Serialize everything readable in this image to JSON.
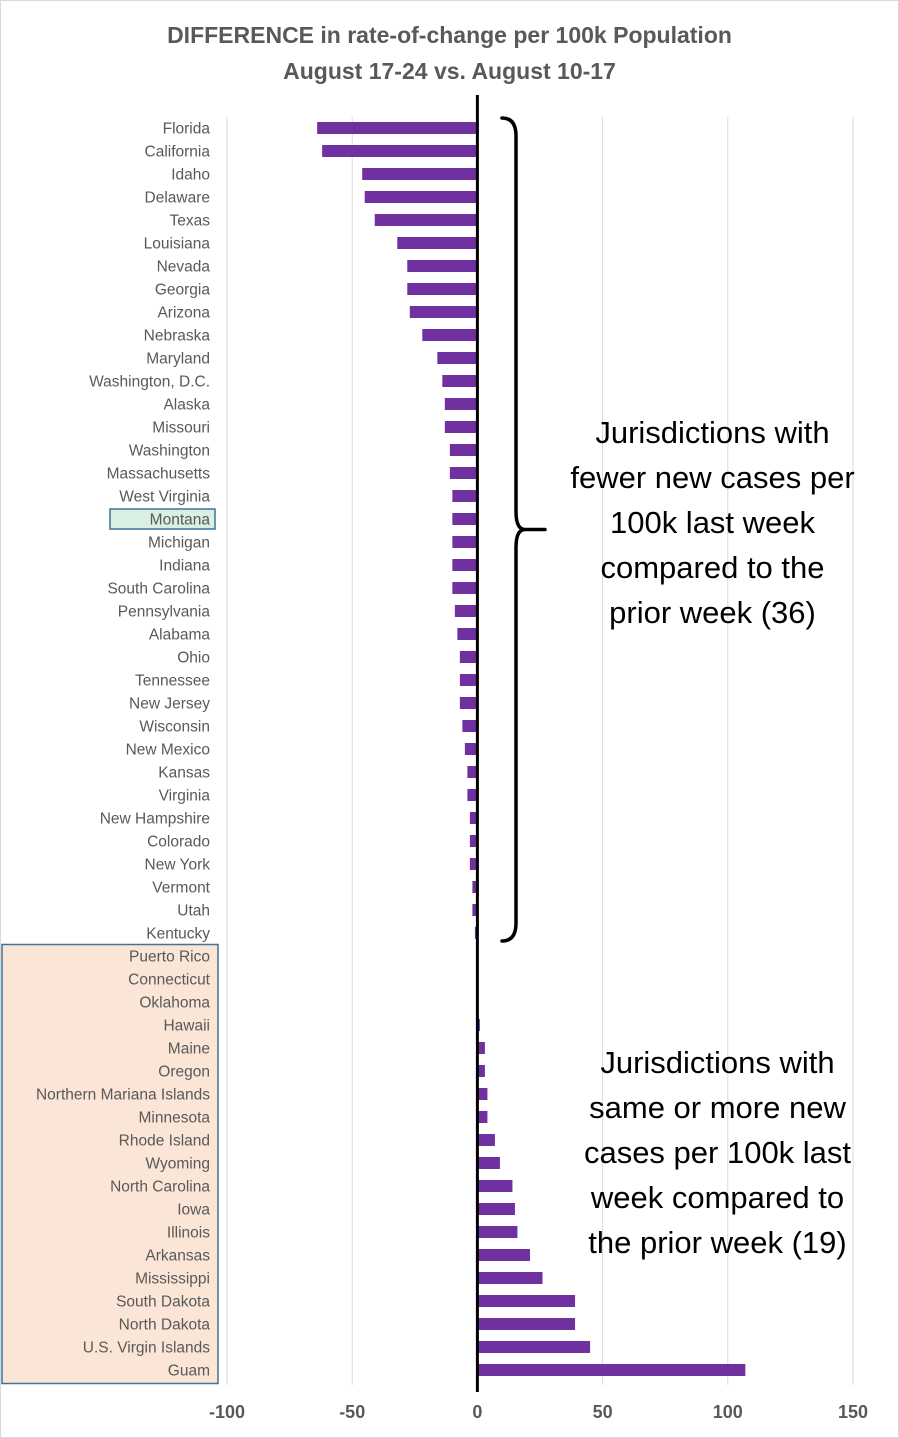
{
  "chart_data": {
    "type": "bar",
    "orientation": "horizontal",
    "title": "DIFFERENCE in rate-of-change per 100k Population",
    "subtitle": "August 17-24 vs. August 10-17",
    "xlim": [
      -100,
      150
    ],
    "xticks": [
      -100,
      -50,
      0,
      50,
      100,
      150
    ],
    "grid": true,
    "bar_color": "#7030a0",
    "categories": [
      "Florida",
      "California",
      "Idaho",
      "Delaware",
      "Texas",
      "Louisiana",
      "Nevada",
      "Georgia",
      "Arizona",
      "Nebraska",
      "Maryland",
      "Washington, D.C.",
      "Alaska",
      "Missouri",
      "Washington",
      "Massachusetts",
      "West Virginia",
      "Montana",
      "Michigan",
      "Indiana",
      "South Carolina",
      "Pennsylvania",
      "Alabama",
      "Ohio",
      "Tennessee",
      "New Jersey",
      "Wisconsin",
      "New Mexico",
      "Kansas",
      "Virginia",
      "New Hampshire",
      "Colorado",
      "New York",
      "Vermont",
      "Utah",
      "Kentucky",
      "Puerto Rico",
      "Connecticut",
      "Oklahoma",
      "Hawaii",
      "Maine",
      "Oregon",
      "Northern Mariana Islands",
      "Minnesota",
      "Rhode Island",
      "Wyoming",
      "North Carolina",
      "Iowa",
      "Illinois",
      "Arkansas",
      "Mississippi",
      "South Dakota",
      "North Dakota",
      "U.S. Virgin Islands",
      "Guam"
    ],
    "values": [
      -64,
      -62,
      -46,
      -45,
      -41,
      -32,
      -28,
      -28,
      -27,
      -22,
      -16,
      -14,
      -13,
      -13,
      -11,
      -11,
      -10,
      -10,
      -10,
      -10,
      -10,
      -9,
      -8,
      -7,
      -7,
      -7,
      -6,
      -5,
      -4,
      -4,
      -3,
      -3,
      -3,
      -2,
      -2,
      -1,
      0,
      0,
      0,
      1,
      3,
      3,
      4,
      4,
      7,
      9,
      14,
      15,
      16,
      21,
      26,
      39,
      39,
      45,
      107
    ],
    "highlight_label": "Montana",
    "highlight_color": "#d9efe3",
    "highlight_border": "#41719c",
    "group_box_start": "Puerto Rico",
    "group_box_color": "#fbe5d6"
  },
  "annotations": {
    "fewer": [
      "Jurisdictions with",
      "fewer new cases per",
      "100k last week",
      "compared to the",
      "prior week (36)"
    ],
    "more": [
      "Jurisdictions with",
      "same or more new",
      "cases per 100k last",
      "week compared to",
      "the prior week (19)"
    ]
  }
}
